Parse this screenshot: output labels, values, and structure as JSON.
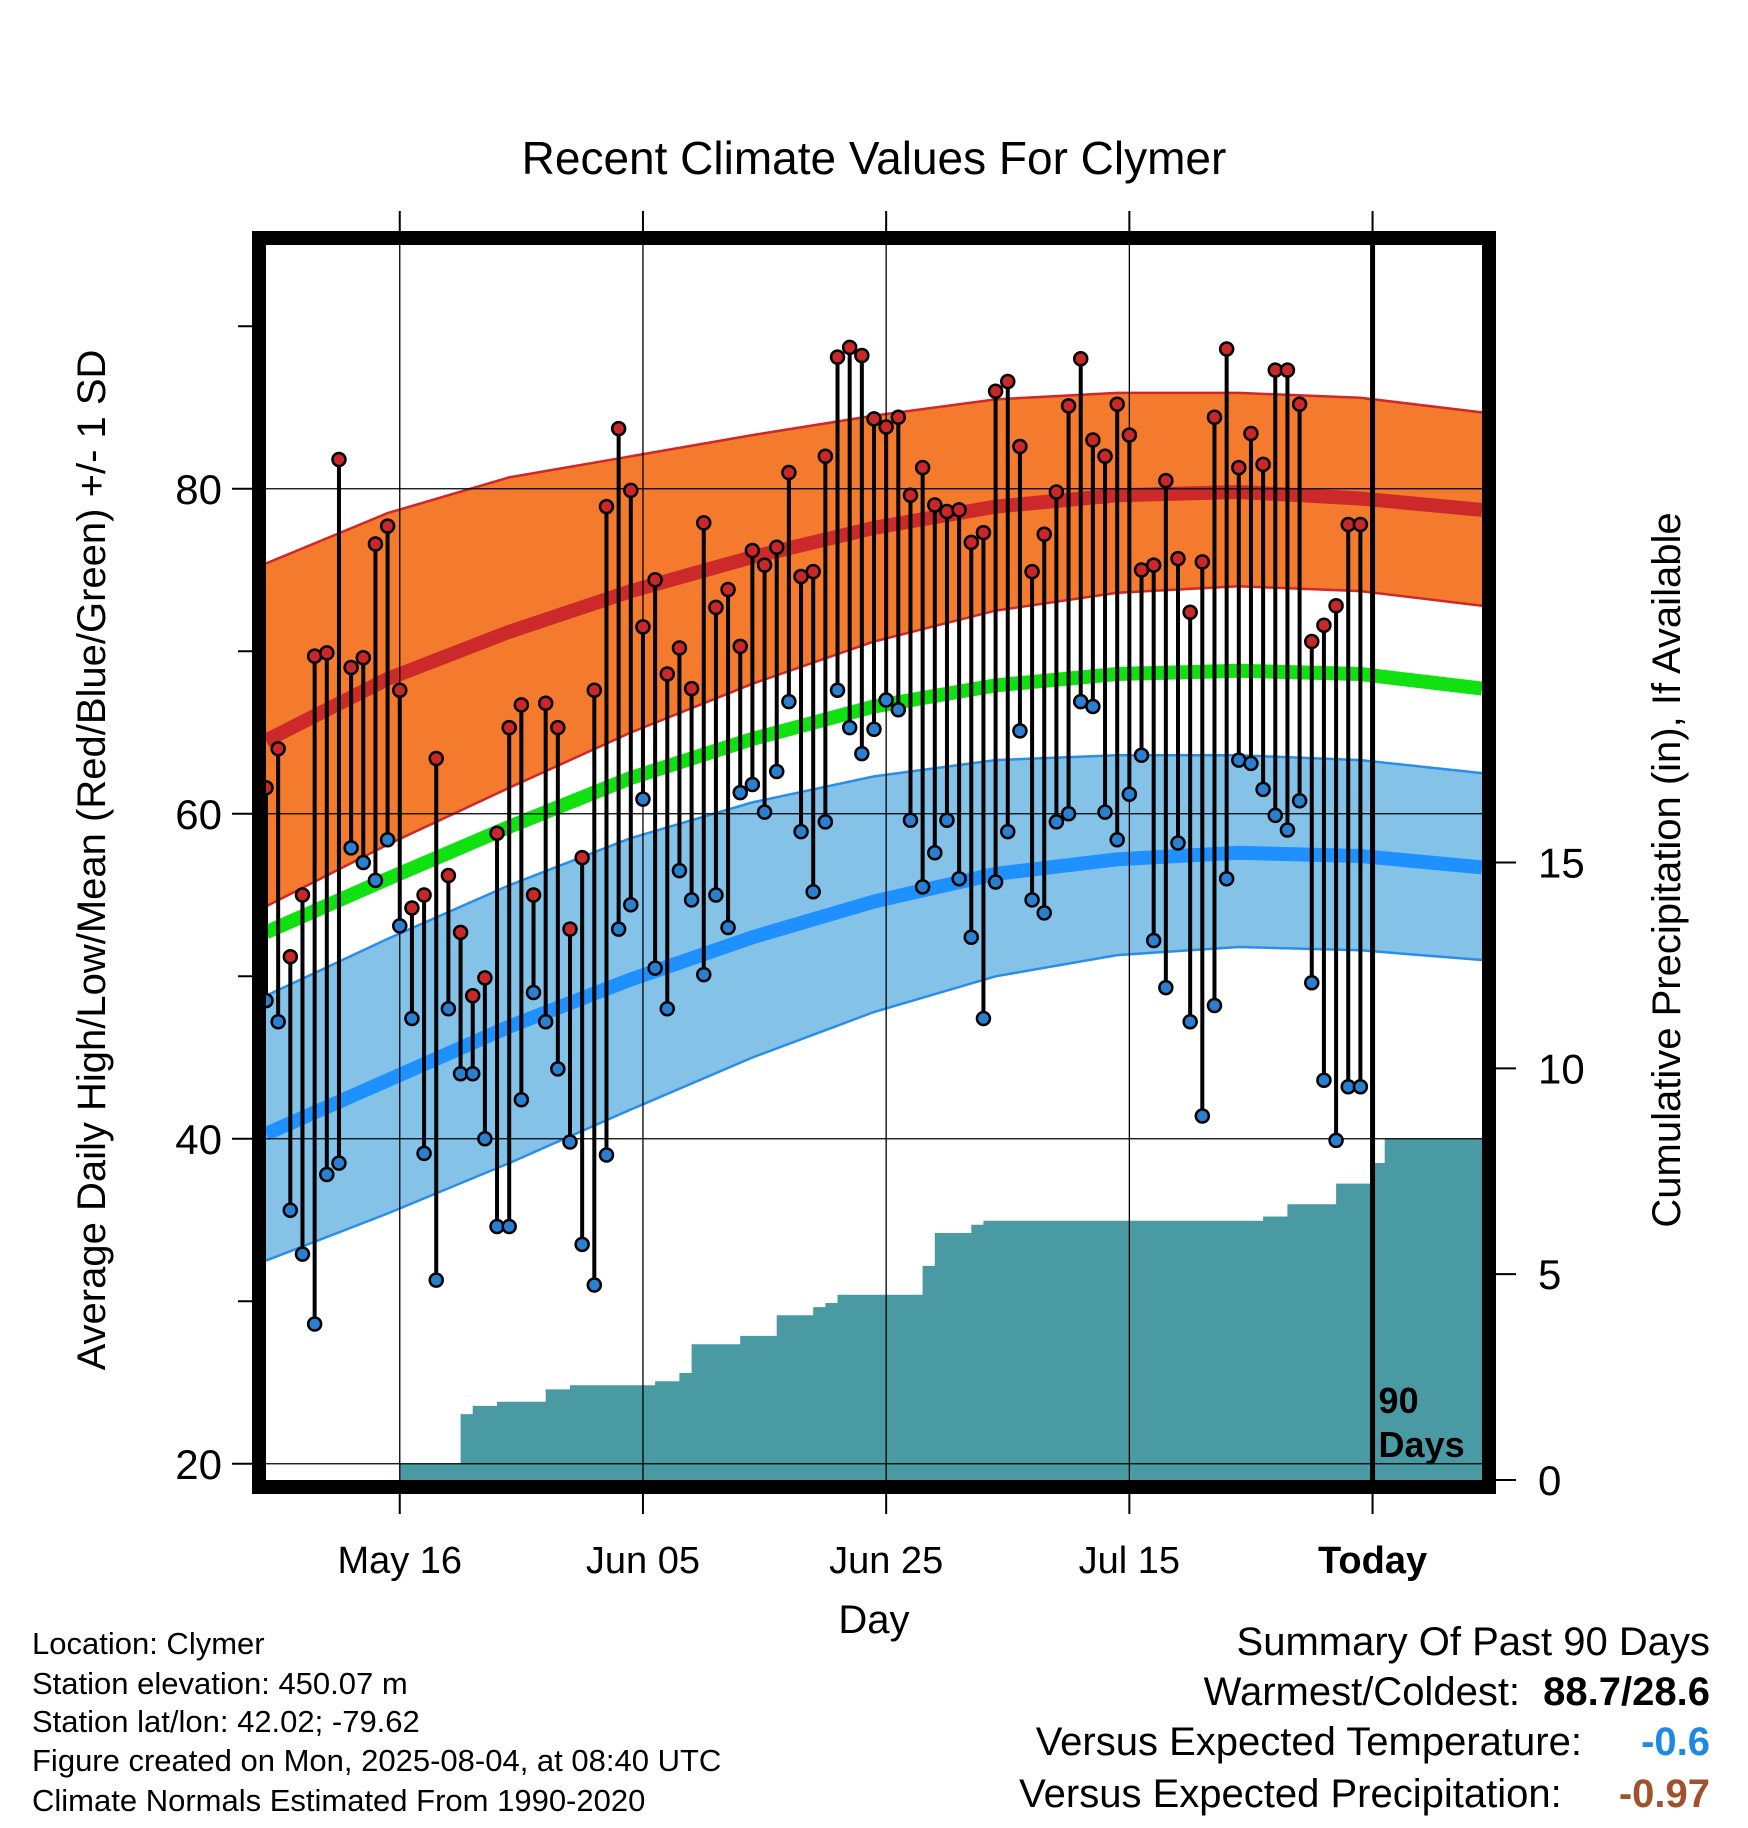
{
  "chart_data": {
    "type": "line",
    "title": "Recent Climate Values For Clymer",
    "xlabel": "Day",
    "ylabel": "Average Daily High/Low/Mean (Red/Blue/Green) +/- 1 SD",
    "y2label": "Cumulative Precipitation (in), If Available",
    "ylim": [
      19,
      95
    ],
    "y2lim": [
      0,
      30
    ],
    "yticks": [
      "20",
      "40",
      "60",
      "80"
    ],
    "y2ticks": [
      "0",
      "5",
      "10",
      "15"
    ],
    "xlim": [
      1,
      101
    ],
    "xtick_days": [
      12,
      32,
      52,
      72,
      92
    ],
    "xticks": [
      "May 16",
      "Jun 05",
      "Jun 25",
      "Jul 15",
      "Today"
    ],
    "today_day": 92,
    "today_label_1": "90",
    "today_label_2": "Days",
    "grid": true,
    "colors": {
      "high_band": "#f47a2e",
      "high_band_edge": "#d02828",
      "high_mean": "#cc2a2a",
      "low_band": "#84c2e8",
      "low_band_edge": "#2a8ee8",
      "low_mean": "#1e90ff",
      "mean": "#11e011",
      "precip": "#4a9aa4",
      "high_dot": "#c82828",
      "low_dot": "#2a80d0"
    },
    "normals": {
      "days": [
        1,
        11,
        21,
        31,
        41,
        51,
        61,
        71,
        81,
        91,
        101
      ],
      "high_mean": [
        64.5,
        68.3,
        71.2,
        73.7,
        75.8,
        77.6,
        78.9,
        79.6,
        79.8,
        79.4,
        78.7
      ],
      "high_sd_upper": [
        75.4,
        78.5,
        80.7,
        82.0,
        83.3,
        84.5,
        85.5,
        85.9,
        85.9,
        85.6,
        84.7
      ],
      "high_sd_lower": [
        54.3,
        58.1,
        61.6,
        65.0,
        68.0,
        70.6,
        72.5,
        73.6,
        74.0,
        73.7,
        72.8
      ],
      "mean": [
        52.7,
        56.0,
        59.2,
        62.2,
        64.6,
        66.6,
        67.9,
        68.6,
        68.8,
        68.6,
        67.7
      ],
      "low_mean": [
        40.3,
        43.6,
        46.9,
        49.8,
        52.4,
        54.6,
        56.3,
        57.2,
        57.6,
        57.4,
        56.7
      ],
      "low_sd_upper": [
        48.8,
        52.3,
        55.6,
        58.5,
        60.7,
        62.3,
        63.3,
        63.6,
        63.6,
        63.3,
        62.5
      ],
      "low_sd_lower": [
        32.5,
        35.4,
        38.5,
        41.8,
        45.0,
        47.8,
        50.0,
        51.3,
        51.8,
        51.6,
        51.0
      ]
    },
    "series": [
      {
        "name": "High",
        "x": [
          1,
          2,
          3,
          4,
          5,
          6,
          7,
          8,
          9,
          10,
          11,
          12,
          13,
          14,
          15,
          16,
          17,
          18,
          19,
          20,
          21,
          22,
          23,
          24,
          25,
          26,
          27,
          28,
          29,
          30,
          31,
          32,
          33,
          34,
          35,
          36,
          37,
          38,
          39,
          40,
          41,
          42,
          43,
          44,
          45,
          46,
          47,
          48,
          49,
          50,
          51,
          52,
          53,
          54,
          55,
          56,
          57,
          58,
          59,
          60,
          61,
          62,
          63,
          64,
          65,
          66,
          67,
          68,
          69,
          70,
          71,
          72,
          73,
          74,
          75,
          76,
          77,
          78,
          79,
          80,
          81,
          82,
          83,
          84,
          85,
          86,
          87,
          88,
          89,
          90,
          91
        ],
        "values": [
          61.6,
          64.0,
          51.2,
          55.0,
          69.7,
          69.9,
          81.8,
          69.0,
          69.6,
          76.6,
          77.7,
          67.6,
          54.2,
          55.0,
          63.4,
          56.2,
          52.7,
          48.8,
          49.9,
          58.8,
          65.3,
          66.7,
          55.0,
          66.8,
          65.3,
          52.9,
          57.3,
          67.6,
          78.9,
          83.7,
          79.9,
          71.5,
          74.4,
          68.6,
          70.2,
          67.7,
          77.9,
          72.7,
          73.8,
          70.3,
          76.2,
          75.3,
          76.4,
          81.0,
          74.6,
          74.9,
          82.0,
          88.1,
          88.7,
          88.2,
          84.3,
          83.8,
          84.4,
          79.6,
          81.3,
          79.0,
          78.6,
          78.7,
          76.7,
          77.3,
          86.0,
          86.6,
          82.6,
          74.9,
          77.2,
          79.8,
          85.1,
          88.0,
          83.0,
          82.0,
          85.2,
          83.3,
          75.0,
          75.3,
          80.5,
          75.7,
          72.4,
          75.5,
          84.4,
          88.6,
          81.3,
          83.4,
          81.5,
          87.3,
          87.3,
          85.2,
          70.6,
          71.6,
          72.8,
          77.8,
          77.8
        ]
      },
      {
        "name": "Low",
        "x": [
          1,
          2,
          3,
          4,
          5,
          6,
          7,
          8,
          9,
          10,
          11,
          12,
          13,
          14,
          15,
          16,
          17,
          18,
          19,
          20,
          21,
          22,
          23,
          24,
          25,
          26,
          27,
          28,
          29,
          30,
          31,
          32,
          33,
          34,
          35,
          36,
          37,
          38,
          39,
          40,
          41,
          42,
          43,
          44,
          45,
          46,
          47,
          48,
          49,
          50,
          51,
          52,
          53,
          54,
          55,
          56,
          57,
          58,
          59,
          60,
          61,
          62,
          63,
          64,
          65,
          66,
          67,
          68,
          69,
          70,
          71,
          72,
          73,
          74,
          75,
          76,
          77,
          78,
          79,
          80,
          81,
          82,
          83,
          84,
          85,
          86,
          87,
          88,
          89,
          90,
          91
        ],
        "values": [
          48.5,
          47.2,
          35.6,
          32.9,
          28.6,
          37.8,
          38.5,
          57.9,
          57.0,
          55.9,
          58.4,
          53.1,
          47.4,
          39.1,
          31.3,
          48.0,
          44.0,
          44.0,
          40.0,
          34.6,
          34.6,
          42.4,
          49.0,
          47.2,
          44.3,
          39.8,
          33.5,
          31.0,
          39.0,
          52.9,
          54.4,
          60.9,
          50.5,
          48.0,
          56.5,
          54.7,
          50.1,
          55.0,
          53.0,
          61.3,
          61.8,
          60.1,
          62.6,
          66.9,
          58.9,
          55.2,
          59.5,
          67.6,
          65.3,
          63.7,
          65.2,
          67.0,
          66.4,
          59.6,
          55.5,
          57.6,
          59.6,
          56.0,
          52.4,
          47.4,
          55.8,
          58.9,
          65.1,
          54.7,
          53.9,
          59.5,
          60.0,
          66.9,
          66.6,
          60.1,
          58.4,
          61.2,
          63.6,
          52.2,
          49.3,
          58.2,
          47.2,
          41.4,
          48.2,
          56.0,
          63.3,
          63.1,
          61.5,
          59.9,
          59.0,
          60.8,
          49.6,
          43.6,
          39.9,
          43.2,
          43.2
        ]
      }
    ],
    "precip_days": [
      1,
      11,
      12,
      13,
      14,
      15,
      16,
      17,
      18,
      19,
      20,
      21,
      22,
      23,
      24,
      25,
      26,
      27,
      28,
      29,
      30,
      31,
      32,
      33,
      34,
      35,
      36,
      37,
      38,
      39,
      40,
      41,
      42,
      43,
      44,
      45,
      46,
      47,
      48,
      49,
      50,
      51,
      52,
      53,
      54,
      55,
      56,
      57,
      58,
      59,
      60,
      61,
      62,
      63,
      64,
      65,
      66,
      67,
      68,
      69,
      70,
      71,
      72,
      73,
      74,
      75,
      76,
      77,
      78,
      79,
      80,
      81,
      82,
      83,
      84,
      85,
      86,
      87,
      88,
      89,
      90,
      91,
      92,
      93,
      94,
      95,
      96,
      97,
      98,
      99,
      100,
      101
    ],
    "precip_values": [
      0,
      0,
      0.4,
      0.4,
      0.4,
      0.4,
      0.4,
      1.6,
      1.8,
      1.8,
      1.9,
      1.9,
      1.9,
      1.9,
      2.2,
      2.2,
      2.3,
      2.3,
      2.3,
      2.3,
      2.3,
      2.3,
      2.3,
      2.4,
      2.4,
      2.6,
      3.3,
      3.3,
      3.3,
      3.3,
      3.5,
      3.5,
      3.5,
      4.0,
      4.0,
      4.0,
      4.2,
      4.3,
      4.5,
      4.5,
      4.5,
      4.5,
      4.5,
      4.5,
      4.5,
      5.2,
      6.0,
      6.0,
      6.0,
      6.2,
      6.3,
      6.3,
      6.3,
      6.3,
      6.3,
      6.3,
      6.3,
      6.3,
      6.3,
      6.3,
      6.3,
      6.3,
      6.3,
      6.3,
      6.3,
      6.3,
      6.3,
      6.3,
      6.3,
      6.3,
      6.3,
      6.3,
      6.3,
      6.4,
      6.4,
      6.7,
      6.7,
      6.7,
      6.7,
      7.2,
      7.2,
      7.2,
      7.7,
      8.3,
      8.3,
      8.3,
      8.3,
      8.3,
      8.3,
      8.3,
      8.3,
      8.3
    ]
  },
  "info": {
    "location": "Location: Clymer",
    "elevation": "Station elevation: 450.07 m",
    "latlon": "Station lat/lon: 42.02; -79.62",
    "created": "Figure created on Mon, 2025-08-04, at 08:40 UTC",
    "normals": "Climate Normals Estimated From 1990-2020"
  },
  "summary": {
    "title": "Summary Of Past 90 Days",
    "warm_label": "Warmest/Coldest:",
    "warm_value": "88.7/28.6",
    "temp_label": "Versus Expected Temperature:",
    "temp_value": "-0.6",
    "temp_color": "#1e88e5",
    "precip_label": "Versus Expected Precipitation:",
    "precip_value": "-0.97",
    "precip_color": "#a0522d"
  }
}
